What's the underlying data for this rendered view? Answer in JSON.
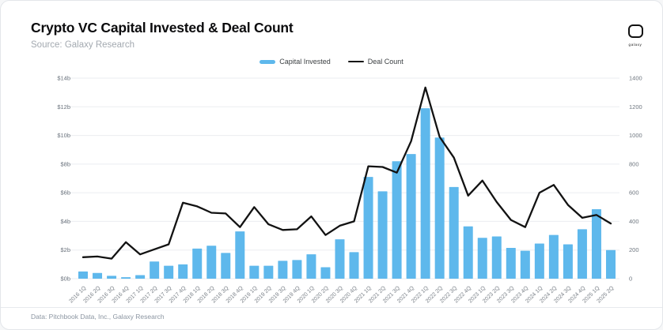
{
  "header": {
    "title": "Crypto VC Capital Invested & Deal Count",
    "source": "Source: Galaxy Research",
    "logo_text": "galaxy"
  },
  "legend": {
    "capital_invested_label": "Capital Invested",
    "deal_count_label": "Deal Count"
  },
  "footer": {
    "text": "Data: Pitchbook Data, Inc., Galaxy Research"
  },
  "colors": {
    "bar": "#5eb8ec",
    "line": "#121212",
    "grid": "#ebedf0",
    "axis_text": "#6f7780",
    "x_axis_text": "#7a8088"
  },
  "chart_data": {
    "type": "bar",
    "subtype": "bar+line dual axis",
    "title": "Crypto VC Capital Invested & Deal Count",
    "categories": [
      "2016 1Q",
      "2016 2Q",
      "2016 3Q",
      "2016 4Q",
      "2017 1Q",
      "2017 2Q",
      "2017 3Q",
      "2017 4Q",
      "2018 1Q",
      "2018 2Q",
      "2018 3Q",
      "2018 4Q",
      "2019 1Q",
      "2019 2Q",
      "2019 3Q",
      "2019 4Q",
      "2020 1Q",
      "2020 2Q",
      "2020 3Q",
      "2020 4Q",
      "2021 1Q",
      "2021 2Q",
      "2021 3Q",
      "2021 4Q",
      "2022 1Q",
      "2022 2Q",
      "2022 3Q",
      "2022 4Q",
      "2023 1Q",
      "2023 2Q",
      "2023 3Q",
      "2023 4Q",
      "2024 1Q",
      "2024 2Q",
      "2024 3Q",
      "2024 4Q",
      "2025 1Q",
      "2025 2Q"
    ],
    "series": [
      {
        "name": "Capital Invested",
        "type": "bar",
        "axis": "left",
        "unit": "$ billions",
        "color": "#5eb8ec",
        "values": [
          0.5,
          0.4,
          0.2,
          0.1,
          0.25,
          1.2,
          0.9,
          1.0,
          2.1,
          2.3,
          1.8,
          3.3,
          0.9,
          0.9,
          1.25,
          1.3,
          1.7,
          0.8,
          2.75,
          1.85,
          7.1,
          6.1,
          8.2,
          8.7,
          11.9,
          9.85,
          6.4,
          3.65,
          2.85,
          2.95,
          2.15,
          1.95,
          2.45,
          3.05,
          2.4,
          3.45,
          4.85,
          2.0
        ]
      },
      {
        "name": "Deal Count",
        "type": "line",
        "axis": "right",
        "unit": "deals",
        "color": "#121212",
        "values": [
          150,
          155,
          140,
          255,
          170,
          205,
          240,
          530,
          505,
          460,
          455,
          360,
          500,
          380,
          340,
          345,
          435,
          305,
          370,
          400,
          785,
          780,
          740,
          960,
          1335,
          990,
          845,
          580,
          685,
          535,
          410,
          360,
          600,
          655,
          515,
          425,
          445,
          385
        ]
      }
    ],
    "left_axis": {
      "ticks": [
        "$0b",
        "$2b",
        "$4b",
        "$6b",
        "$8b",
        "$10b",
        "$12b",
        "$14b"
      ],
      "min": 0,
      "max": 14
    },
    "right_axis": {
      "ticks": [
        "0",
        "200",
        "400",
        "600",
        "800",
        "1000",
        "1200",
        "1400"
      ],
      "min": 0,
      "max": 1400
    },
    "grid": true,
    "legend_position": "top-center"
  }
}
